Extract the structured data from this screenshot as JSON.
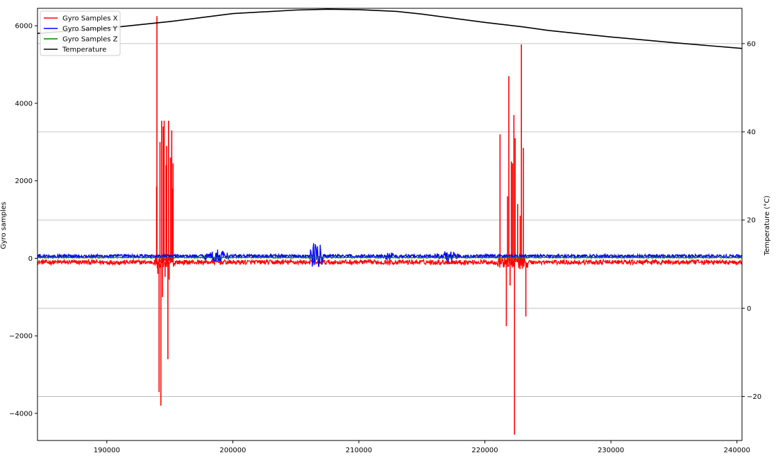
{
  "chart_data": {
    "type": "line",
    "title": "",
    "xlabel": "",
    "ylabel": "Gyro samples",
    "y2label": "Temperature (°C)",
    "xlim": [
      184500,
      240400
    ],
    "ylim": [
      -4700,
      6450
    ],
    "y2lim": [
      -30,
      68
    ],
    "xticks": [
      190000,
      200000,
      210000,
      220000,
      230000,
      240000
    ],
    "yticks": [
      -4000,
      -2000,
      0,
      2000,
      4000,
      6000
    ],
    "y2ticks": [
      -20,
      0,
      20,
      40,
      60
    ],
    "grid": "right-axis horizontal lines",
    "legend": {
      "position": "top-left",
      "entries": [
        {
          "label": "Gyro Samples X",
          "color": "#ff0000"
        },
        {
          "label": "Gyro Samples Y",
          "color": "#0000ff"
        },
        {
          "label": "Gyro Samples Z",
          "color": "#008000"
        },
        {
          "label": "Temperature",
          "color": "#000000"
        }
      ]
    },
    "series": [
      {
        "name": "Gyro Samples X",
        "color": "#ff0000",
        "axis": "left",
        "baseline": -100,
        "noise": 60,
        "spikes": [
          [
            193950,
            1850
          ],
          [
            193980,
            6250
          ],
          [
            194050,
            -400
          ],
          [
            194150,
            -3450
          ],
          [
            194220,
            3000
          ],
          [
            194290,
            -3800
          ],
          [
            194350,
            3550
          ],
          [
            194420,
            -1000
          ],
          [
            194480,
            3400
          ],
          [
            194550,
            3550
          ],
          [
            194620,
            -480
          ],
          [
            194700,
            2400
          ],
          [
            194750,
            2900
          ],
          [
            194850,
            -2600
          ],
          [
            194900,
            3550
          ],
          [
            194950,
            -550
          ],
          [
            195050,
            2600
          ],
          [
            195150,
            3300
          ],
          [
            195200,
            1800
          ],
          [
            195260,
            2450
          ],
          [
            221200,
            3200
          ],
          [
            221700,
            -1750
          ],
          [
            221800,
            1600
          ],
          [
            221900,
            4700
          ],
          [
            222000,
            -700
          ],
          [
            222100,
            2500
          ],
          [
            222200,
            2450
          ],
          [
            222300,
            3700
          ],
          [
            222350,
            -4550
          ],
          [
            222400,
            3100
          ],
          [
            222600,
            1400
          ],
          [
            222800,
            1100
          ],
          [
            222900,
            5520
          ],
          [
            223050,
            2850
          ],
          [
            223250,
            -1500
          ]
        ]
      },
      {
        "name": "Gyro Samples Y",
        "color": "#0000ff",
        "axis": "left",
        "baseline": 60,
        "noise": 40,
        "bursts": [
          [
            197500,
            200000,
            180
          ],
          [
            206100,
            207200,
            520
          ],
          [
            211800,
            213000,
            120
          ],
          [
            216000,
            218000,
            160
          ]
        ]
      },
      {
        "name": "Gyro Samples Z",
        "color": "#008000",
        "axis": "left",
        "baseline": 20,
        "noise": 15
      },
      {
        "name": "Temperature",
        "color": "#000000",
        "axis": "right",
        "x": [
          184500,
          190000,
          195000,
          200000,
          205000,
          207500,
          210000,
          213000,
          215000,
          220000,
          223000,
          225000,
          230000,
          235000,
          240400
        ],
        "values": [
          62.3,
          63.5,
          65.0,
          66.8,
          67.6,
          67.8,
          67.7,
          67.3,
          66.7,
          64.8,
          63.8,
          63.0,
          61.5,
          60.2,
          58.9
        ]
      }
    ]
  }
}
